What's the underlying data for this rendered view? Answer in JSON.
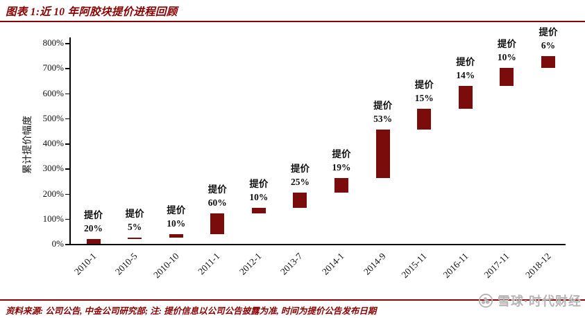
{
  "header": {
    "title": "图表 1:近 10 年阿胶块提价进程回顾"
  },
  "footer": {
    "note": "资料来源: 公司公告, 中金公司研究部;  注: 提价信息以公司公告披露为准, 时间为提价公告发布日期"
  },
  "watermark": {
    "text": "雪球·时代财经"
  },
  "colors": {
    "accent": "#8B0000",
    "bar": "#7A0C0C",
    "axis": "#000000",
    "text": "#111111",
    "watermark": "#B5B5B5"
  },
  "chart_data": {
    "type": "bar",
    "subtype": "waterfall",
    "title": "近 10 年阿胶块提价进程回顾",
    "xlabel": "",
    "ylabel": "累计提价幅度",
    "ylim": [
      0,
      800
    ],
    "ytick_step": 100,
    "ytick_suffix": "%",
    "grid": false,
    "legend": false,
    "bar_label_prefix": "提价",
    "categories": [
      "2010-1",
      "2010-5",
      "2010-10",
      "2011-1",
      "2012-1",
      "2013-7",
      "2014-1",
      "2014-9",
      "2015-11",
      "2016-11",
      "2017-11",
      "2018-12"
    ],
    "increase_pct": [
      20,
      5,
      10,
      60,
      10,
      25,
      19,
      53,
      15,
      14,
      10,
      6
    ],
    "cumulative_start_pct": [
      0,
      20,
      26,
      38.6,
      121.8,
      143.9,
      204.9,
      262.9,
      455.2,
      538.5,
      627.9,
      700.6
    ],
    "cumulative_end_pct": [
      20,
      26,
      38.6,
      121.8,
      143.9,
      204.9,
      262.9,
      455.2,
      538.5,
      627.9,
      700.6,
      748.7
    ]
  }
}
